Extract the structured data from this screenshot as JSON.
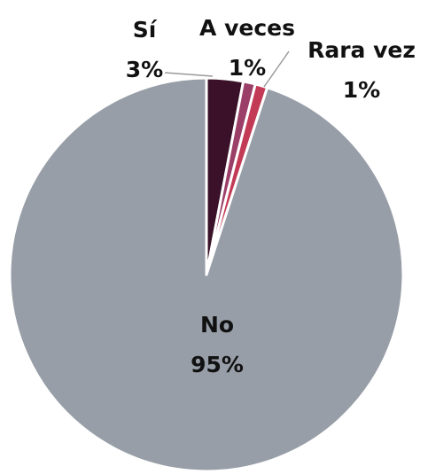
{
  "chart_data": {
    "type": "pie",
    "title": "",
    "start_angle_deg": 0,
    "direction": "clockwise",
    "slices": [
      {
        "label": "Sí",
        "value": 3,
        "display": "3%",
        "color": "#3a1128"
      },
      {
        "label": "A veces",
        "value": 1,
        "display": "1%",
        "color": "#9c3f68"
      },
      {
        "label": "Rara vez",
        "value": 1,
        "display": "1%",
        "color": "#c23a55"
      },
      {
        "label": "No",
        "value": 95,
        "display": "95%",
        "color": "#979ea7"
      }
    ]
  }
}
